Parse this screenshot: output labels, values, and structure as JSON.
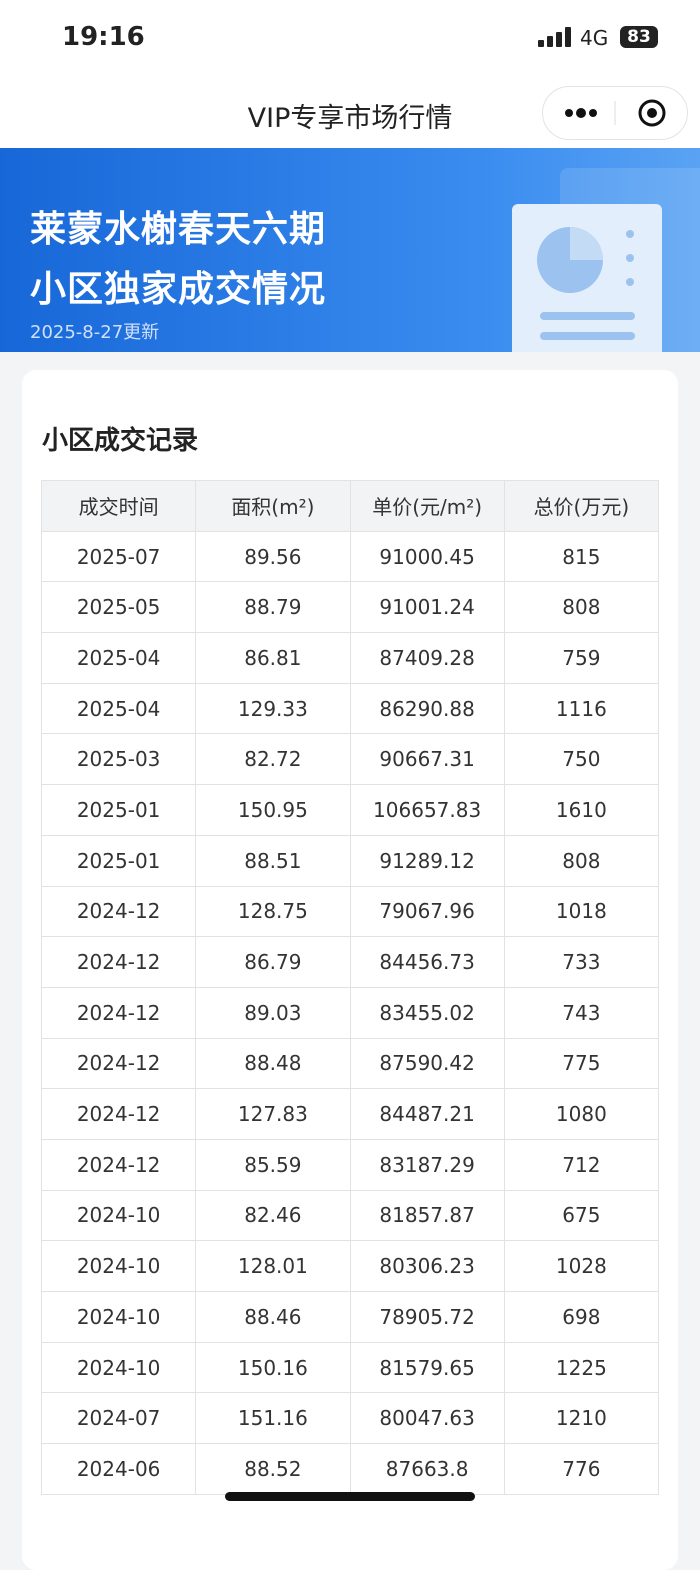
{
  "status_bar": {
    "time": "19:16",
    "network": "4G",
    "battery": "83"
  },
  "nav": {
    "title": "VIP专享市场行情"
  },
  "banner": {
    "title_line1": "莱蒙水榭春天六期",
    "title_line2": "小区独家成交情况",
    "updated": "2025-8-27更新"
  },
  "card": {
    "title": "小区成交记录"
  },
  "table": {
    "headers": [
      "成交时间",
      "面积(m²)",
      "单价(元/m²)",
      "总价(万元)"
    ],
    "rows": [
      [
        "2025-07",
        "89.56",
        "91000.45",
        "815"
      ],
      [
        "2025-05",
        "88.79",
        "91001.24",
        "808"
      ],
      [
        "2025-04",
        "86.81",
        "87409.28",
        "759"
      ],
      [
        "2025-04",
        "129.33",
        "86290.88",
        "1116"
      ],
      [
        "2025-03",
        "82.72",
        "90667.31",
        "750"
      ],
      [
        "2025-01",
        "150.95",
        "106657.83",
        "1610"
      ],
      [
        "2025-01",
        "88.51",
        "91289.12",
        "808"
      ],
      [
        "2024-12",
        "128.75",
        "79067.96",
        "1018"
      ],
      [
        "2024-12",
        "86.79",
        "84456.73",
        "733"
      ],
      [
        "2024-12",
        "89.03",
        "83455.02",
        "743"
      ],
      [
        "2024-12",
        "88.48",
        "87590.42",
        "775"
      ],
      [
        "2024-12",
        "127.83",
        "84487.21",
        "1080"
      ],
      [
        "2024-12",
        "85.59",
        "83187.29",
        "712"
      ],
      [
        "2024-10",
        "82.46",
        "81857.87",
        "675"
      ],
      [
        "2024-10",
        "128.01",
        "80306.23",
        "1028"
      ],
      [
        "2024-10",
        "88.46",
        "78905.72",
        "698"
      ],
      [
        "2024-10",
        "150.16",
        "81579.65",
        "1225"
      ],
      [
        "2024-07",
        "151.16",
        "80047.63",
        "1210"
      ],
      [
        "2024-06",
        "88.52",
        "87663.8",
        "776"
      ]
    ]
  }
}
